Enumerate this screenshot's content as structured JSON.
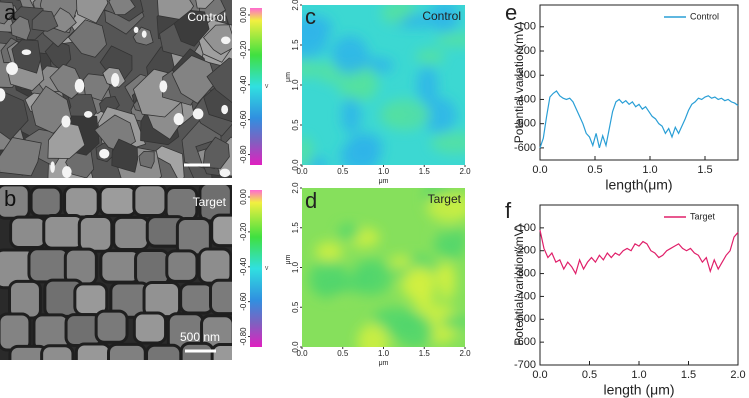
{
  "panel_labels": [
    "a",
    "b",
    "c",
    "d",
    "e",
    "f"
  ],
  "sem_images": [
    {
      "label": "Control"
    },
    {
      "label": "Target",
      "scale_bar": "500 nm"
    }
  ],
  "chart_data": [
    {
      "type": "heatmap",
      "title": "Control",
      "xlim": [
        0,
        2
      ],
      "ylim": [
        0,
        2
      ],
      "xticks": [
        {
          "value": 0,
          "label": "0.0"
        },
        0.5,
        {
          "value": 1,
          "label": "1.0"
        },
        1.5,
        {
          "value": 2,
          "label": "2.0"
        }
      ],
      "yticks": [
        {
          "value": 0,
          "label": "0.0"
        },
        0.5,
        {
          "value": 1,
          "label": "1.0"
        },
        1.5,
        {
          "value": 2,
          "label": "2.0"
        }
      ],
      "xlabel": "μm",
      "ylabel": "μm",
      "colorbar": {
        "label": "V",
        "lim": [
          -0.86,
          0.04
        ],
        "ticks": [
          {
            "value": 0,
            "label": "0.00"
          },
          {
            "value": -0.2,
            "label": "-0.20"
          },
          {
            "value": -0.4,
            "label": "-0.40"
          },
          {
            "value": -0.6,
            "label": "-0.60"
          },
          {
            "value": -0.8,
            "label": "-0.80"
          }
        ]
      },
      "colors": [
        "#3cd8d2",
        "#2fb4ea",
        "#55e2a0"
      ]
    },
    {
      "type": "heatmap",
      "title": "Target",
      "xlim": [
        0,
        2
      ],
      "ylim": [
        0,
        2
      ],
      "xticks": [
        {
          "value": 0,
          "label": "0.0"
        },
        0.5,
        {
          "value": 1,
          "label": "1.0"
        },
        1.5,
        {
          "value": 2,
          "label": "2.0"
        }
      ],
      "yticks": [
        {
          "value": 0,
          "label": "0.0"
        },
        0.5,
        {
          "value": 1,
          "label": "1.0"
        },
        1.5,
        {
          "value": 2,
          "label": "2.0"
        }
      ],
      "xlabel": "μm",
      "ylabel": "μm",
      "colorbar": {
        "label": "V",
        "lim": [
          -0.86,
          0.04
        ],
        "ticks": [
          {
            "value": 0,
            "label": "0.00"
          },
          {
            "value": -0.2,
            "label": "-0.20"
          },
          {
            "value": -0.4,
            "label": "-0.40"
          },
          {
            "value": -0.6,
            "label": "-0.60"
          },
          {
            "value": -0.8,
            "label": "-0.80"
          }
        ]
      },
      "colors": [
        "#86e05c",
        "#d2f040",
        "#50d66c"
      ]
    },
    {
      "type": "line",
      "legend": "upper right",
      "xlabel": "length(μm)",
      "ylabel": "Potential variation(mV)",
      "xlim": [
        0,
        1.8
      ],
      "ylim": [
        -650,
        -10
      ],
      "xticks": [
        {
          "value": 0,
          "label": "0.0"
        },
        0.5,
        {
          "value": 1,
          "label": "1.0"
        },
        1.5
      ],
      "yticks": [
        -100,
        -200,
        -300,
        -400,
        -500,
        -600
      ],
      "x": [
        0,
        0.03,
        0.06,
        0.09,
        0.12,
        0.15,
        0.18,
        0.21,
        0.24,
        0.27,
        0.3,
        0.33,
        0.36,
        0.39,
        0.42,
        0.45,
        0.48,
        0.51,
        0.54,
        0.57,
        0.6,
        0.63,
        0.66,
        0.69,
        0.72,
        0.75,
        0.78,
        0.81,
        0.84,
        0.87,
        0.9,
        0.93,
        0.96,
        0.99,
        1.02,
        1.05,
        1.08,
        1.11,
        1.14,
        1.17,
        1.2,
        1.23,
        1.26,
        1.29,
        1.32,
        1.35,
        1.38,
        1.41,
        1.44,
        1.47,
        1.5,
        1.53,
        1.56,
        1.59,
        1.62,
        1.65,
        1.68,
        1.71,
        1.74,
        1.77,
        1.8
      ],
      "series": [
        {
          "name": "Control",
          "color": "#2a9fd6",
          "values": [
            -600,
            -560,
            -470,
            -390,
            -375,
            -365,
            -385,
            -395,
            -400,
            -395,
            -410,
            -440,
            -470,
            -500,
            -540,
            -555,
            -590,
            -540,
            -600,
            -550,
            -590,
            -520,
            -450,
            -410,
            -400,
            -415,
            -405,
            -420,
            -410,
            -430,
            -420,
            -440,
            -430,
            -450,
            -470,
            -480,
            -500,
            -510,
            -540,
            -520,
            -555,
            -515,
            -540,
            -510,
            -480,
            -445,
            -420,
            -410,
            -395,
            -400,
            -390,
            -385,
            -395,
            -390,
            -400,
            -395,
            -405,
            -400,
            -410,
            -415,
            -425
          ]
        }
      ]
    },
    {
      "type": "line",
      "legend": "upper right",
      "xlabel": "length (μm)",
      "ylabel": "Potential variation(mV)",
      "xlim": [
        0,
        2
      ],
      "ylim": [
        -700,
        0
      ],
      "xticks": [
        {
          "value": 0,
          "label": "0.0"
        },
        0.5,
        {
          "value": 1,
          "label": "1.0"
        },
        1.5,
        {
          "value": 2,
          "label": "2.0"
        }
      ],
      "yticks": [
        -100,
        -200,
        -300,
        -400,
        -500,
        -600,
        -700
      ],
      "x": [
        0,
        0.04,
        0.08,
        0.12,
        0.16,
        0.2,
        0.24,
        0.28,
        0.32,
        0.36,
        0.4,
        0.44,
        0.48,
        0.52,
        0.56,
        0.6,
        0.64,
        0.68,
        0.72,
        0.76,
        0.8,
        0.84,
        0.88,
        0.92,
        0.96,
        1,
        1.04,
        1.08,
        1.12,
        1.16,
        1.2,
        1.24,
        1.28,
        1.32,
        1.36,
        1.4,
        1.44,
        1.48,
        1.52,
        1.56,
        1.6,
        1.64,
        1.68,
        1.72,
        1.76,
        1.8,
        1.84,
        1.88,
        1.92,
        1.96,
        2
      ],
      "series": [
        {
          "name": "Target",
          "color": "#e0206a",
          "values": [
            -110,
            -190,
            -230,
            -210,
            -250,
            -240,
            -280,
            -250,
            -270,
            -300,
            -240,
            -280,
            -250,
            -230,
            -250,
            -220,
            -240,
            -210,
            -230,
            -210,
            -220,
            -200,
            -190,
            -200,
            -170,
            -180,
            -160,
            -170,
            -200,
            -210,
            -230,
            -220,
            -200,
            -190,
            -180,
            -170,
            -190,
            -200,
            -190,
            -210,
            -220,
            -250,
            -230,
            -290,
            -240,
            -280,
            -250,
            -220,
            -200,
            -140,
            -120
          ]
        }
      ]
    }
  ]
}
